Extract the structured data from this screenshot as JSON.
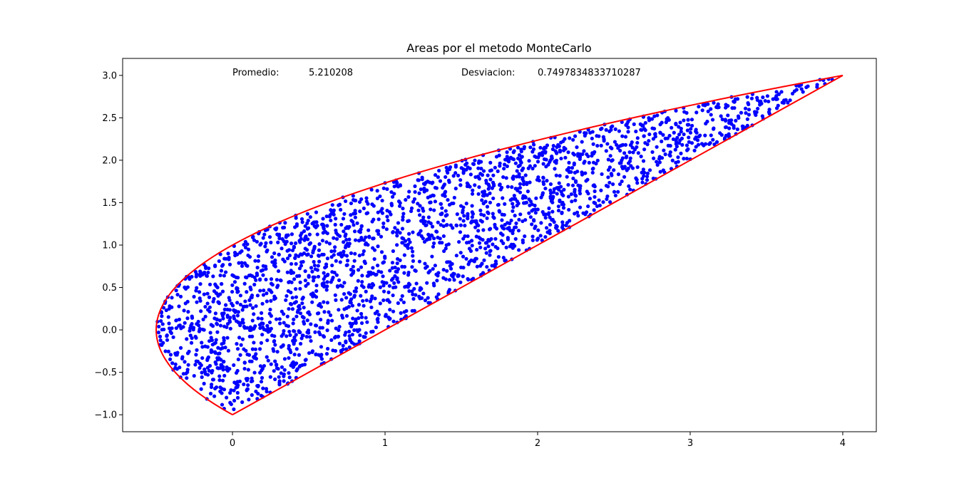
{
  "chart_data": {
    "type": "scatter",
    "title": "Areas por el metodo MonteCarlo",
    "xlabel": "",
    "ylabel": "",
    "xlim": [
      -0.72,
      4.22
    ],
    "ylim": [
      -1.2,
      3.2
    ],
    "xticks": [
      0,
      1,
      2,
      3,
      4
    ],
    "yticks": [
      -1.0,
      -0.5,
      0.0,
      0.5,
      1.0,
      1.5,
      2.0,
      2.5,
      3.0
    ],
    "grid": false,
    "legend": "none",
    "annotations": [
      {
        "label": "Promedio:",
        "value": "5.210208"
      },
      {
        "label": "Desviacion:",
        "value": "0.7497834833710287"
      }
    ],
    "boundary": {
      "color": "#ff0000",
      "upper_curve": "x = y^2/2 - 0.5",
      "line": "y = x - 1",
      "y_range": [
        -1,
        3
      ]
    },
    "points": {
      "color": "#0000ff",
      "count": 2500,
      "seed": 12345
    }
  }
}
